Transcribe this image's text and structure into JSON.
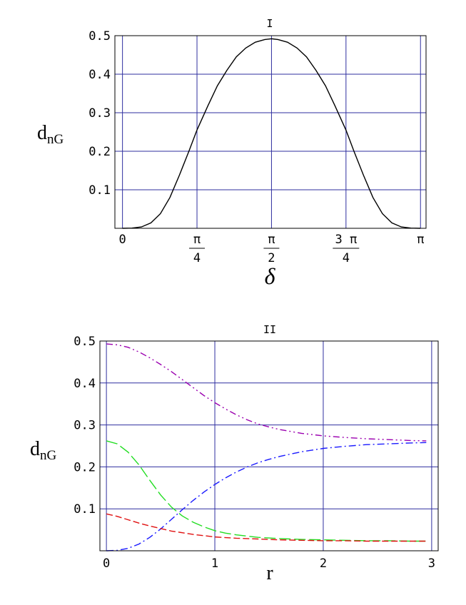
{
  "chart_data": [
    {
      "type": "line",
      "title": "I",
      "xlabel": "δ",
      "ylabel": "d",
      "ylabel_sub": "nG",
      "xlim": [
        -0.08,
        3.2
      ],
      "ylim": [
        0,
        0.5
      ],
      "x_tick_values": [
        0,
        0.7853981634,
        1.5707963268,
        2.3561944902,
        3.1415926536
      ],
      "x_tick_labels": [
        {
          "num": "0",
          "den": ""
        },
        {
          "num": "π",
          "den": "4"
        },
        {
          "num": "π",
          "den": "2"
        },
        {
          "num": "3 π",
          "den": "4"
        },
        {
          "num": "π",
          "den": ""
        }
      ],
      "y_ticks": [
        0.1,
        0.2,
        0.3,
        0.4,
        0.5
      ],
      "y_tick_labels": [
        "0.1",
        "0.2",
        "0.3",
        "0.4",
        "0.5"
      ],
      "grid": true,
      "series": [
        {
          "color": "#000000",
          "dash": "",
          "x": [
            0,
            0.1,
            0.2,
            0.3,
            0.4,
            0.5,
            0.6,
            0.7,
            0.785,
            0.9,
            1.0,
            1.1,
            1.2,
            1.3,
            1.4,
            1.5,
            1.571,
            1.64,
            1.74,
            1.84,
            1.94,
            2.04,
            2.14,
            2.24,
            2.356,
            2.44,
            2.54,
            2.64,
            2.74,
            2.84,
            2.94,
            3.04,
            3.14
          ],
          "y": [
            0.0,
            0.0005,
            0.0035,
            0.014,
            0.038,
            0.08,
            0.138,
            0.2,
            0.255,
            0.318,
            0.37,
            0.41,
            0.445,
            0.468,
            0.483,
            0.49,
            0.492,
            0.49,
            0.483,
            0.468,
            0.445,
            0.41,
            0.37,
            0.318,
            0.255,
            0.2,
            0.138,
            0.08,
            0.038,
            0.014,
            0.0035,
            0.0005,
            0.0
          ]
        }
      ]
    },
    {
      "type": "line",
      "title": "II",
      "xlabel": "r",
      "ylabel": "d",
      "ylabel_sub": "nG",
      "xlim": [
        -0.06,
        3.06
      ],
      "ylim": [
        0,
        0.5
      ],
      "x_tick_values": [
        0,
        1,
        2,
        3
      ],
      "x_tick_labels": [
        "0",
        "1",
        "2",
        "3"
      ],
      "y_ticks": [
        0.1,
        0.2,
        0.3,
        0.4,
        0.5
      ],
      "y_tick_labels": [
        "0.1",
        "0.2",
        "0.3",
        "0.4",
        "0.5"
      ],
      "grid": true,
      "series": [
        {
          "color": "#9b00b0",
          "dash": "9 4 2 4 2 4",
          "x": [
            0,
            0.1,
            0.2,
            0.3,
            0.4,
            0.5,
            0.6,
            0.7,
            0.8,
            0.9,
            1.0,
            1.1,
            1.2,
            1.3,
            1.4,
            1.5,
            1.6,
            1.8,
            2.0,
            2.2,
            2.4,
            2.6,
            2.8,
            2.95
          ],
          "y": [
            0.493,
            0.491,
            0.485,
            0.474,
            0.46,
            0.444,
            0.427,
            0.408,
            0.389,
            0.37,
            0.353,
            0.338,
            0.324,
            0.312,
            0.302,
            0.295,
            0.289,
            0.28,
            0.274,
            0.27,
            0.267,
            0.265,
            0.263,
            0.262
          ]
        },
        {
          "color": "#1a1aff",
          "dash": "10 4 2 4",
          "x": [
            0,
            0.1,
            0.2,
            0.3,
            0.4,
            0.5,
            0.6,
            0.7,
            0.8,
            0.9,
            1.0,
            1.1,
            1.2,
            1.3,
            1.4,
            1.5,
            1.6,
            1.8,
            2.0,
            2.2,
            2.4,
            2.6,
            2.8,
            2.95
          ],
          "y": [
            0.0,
            0.001,
            0.006,
            0.016,
            0.032,
            0.052,
            0.075,
            0.098,
            0.12,
            0.14,
            0.158,
            0.174,
            0.188,
            0.2,
            0.21,
            0.218,
            0.225,
            0.236,
            0.244,
            0.249,
            0.253,
            0.255,
            0.257,
            0.258
          ]
        },
        {
          "color": "#22dd22",
          "dash": "16 5",
          "x": [
            0,
            0.1,
            0.2,
            0.3,
            0.4,
            0.5,
            0.6,
            0.7,
            0.8,
            0.9,
            1.0,
            1.1,
            1.2,
            1.4,
            1.6,
            1.8,
            2.0,
            2.2,
            2.4,
            2.6,
            2.8,
            2.95
          ],
          "y": [
            0.262,
            0.255,
            0.235,
            0.205,
            0.168,
            0.133,
            0.104,
            0.083,
            0.068,
            0.057,
            0.048,
            0.042,
            0.038,
            0.032,
            0.029,
            0.027,
            0.026,
            0.025,
            0.024,
            0.024,
            0.023,
            0.023
          ]
        },
        {
          "color": "#e01010",
          "dash": "9 4",
          "x": [
            0,
            0.1,
            0.2,
            0.3,
            0.4,
            0.5,
            0.6,
            0.7,
            0.8,
            0.9,
            1.0,
            1.2,
            1.4,
            1.6,
            1.8,
            2.0,
            2.2,
            2.4,
            2.6,
            2.8,
            2.95
          ],
          "y": [
            0.088,
            0.082,
            0.074,
            0.066,
            0.059,
            0.053,
            0.047,
            0.043,
            0.039,
            0.036,
            0.033,
            0.03,
            0.028,
            0.026,
            0.025,
            0.024,
            0.024,
            0.023,
            0.023,
            0.023,
            0.023
          ]
        }
      ]
    }
  ]
}
